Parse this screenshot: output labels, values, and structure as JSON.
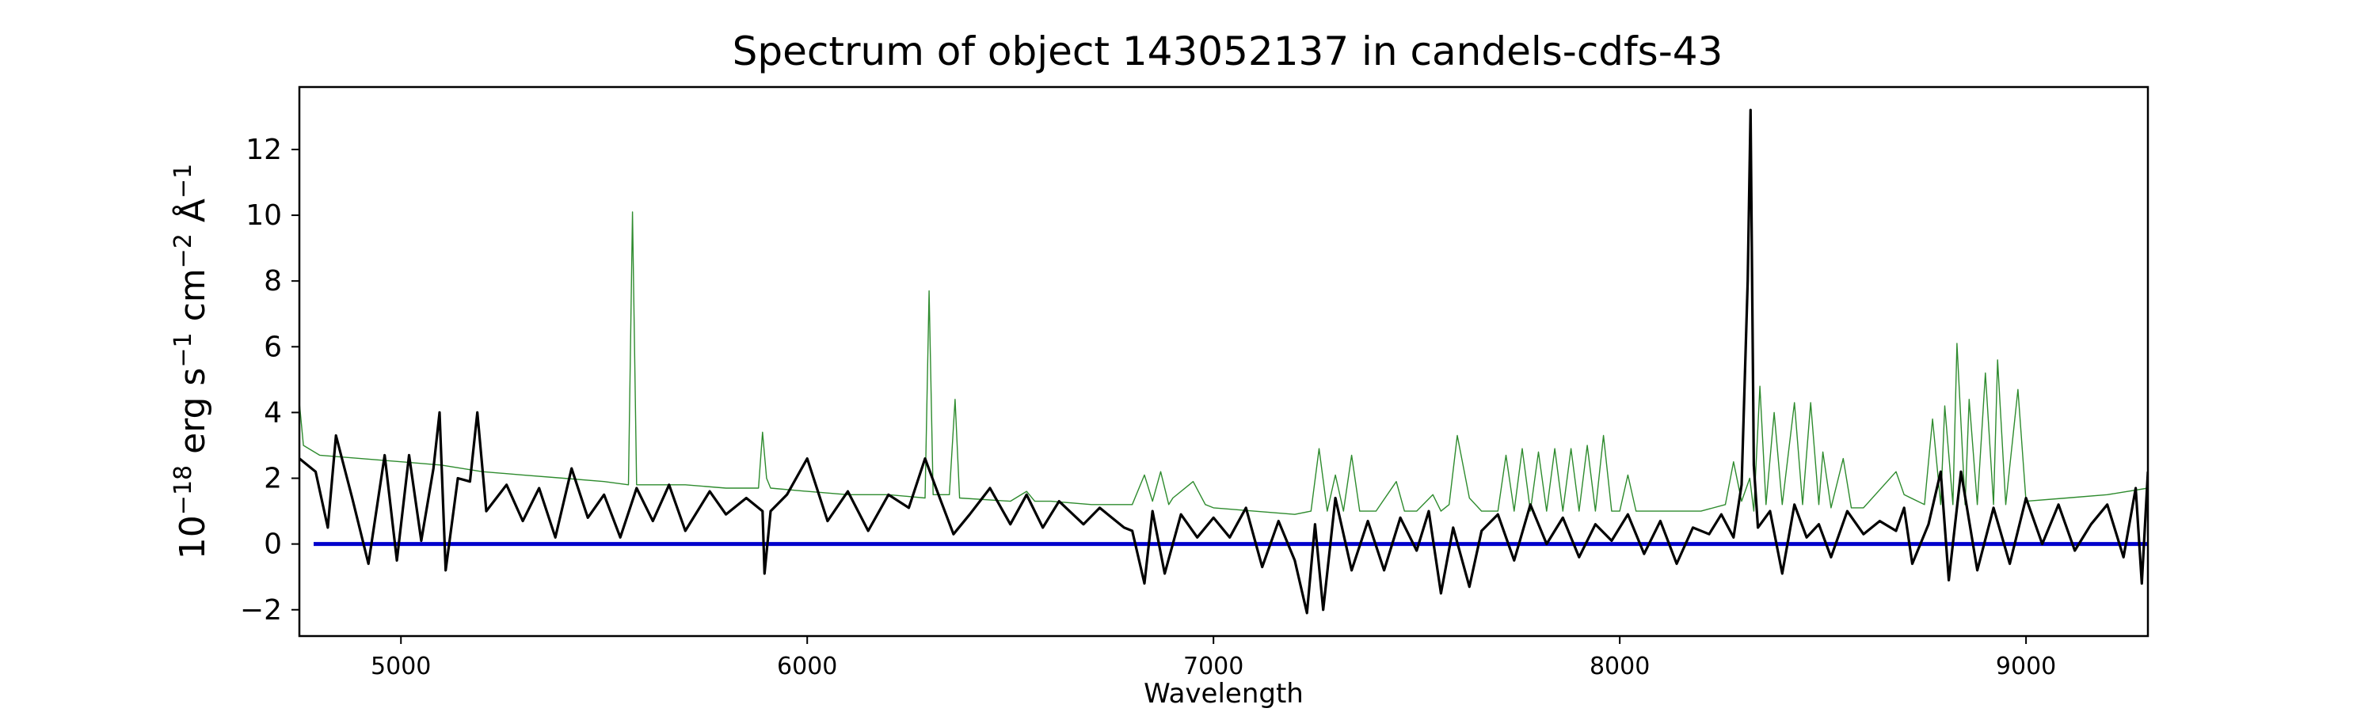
{
  "chart_data": {
    "type": "line",
    "title": "Spectrum of object 143052137 in candels-cdfs-43",
    "xlabel": "Wavelength",
    "ylabel": {
      "base": "10",
      "exp1": "−18",
      "unit1": " erg s",
      "exp2": "−1",
      "unit2": " cm",
      "exp3": "−2",
      "unit3": " Å",
      "exp4": "−1"
    },
    "xlim": [
      4750,
      9300
    ],
    "ylim": [
      -2.8,
      13.9
    ],
    "xticks": [
      5000,
      6000,
      7000,
      8000,
      9000
    ],
    "yticks": [
      -2,
      0,
      2,
      4,
      6,
      8,
      10,
      12
    ],
    "ytick_labels": [
      "−2",
      "0",
      "2",
      "4",
      "6",
      "8",
      "10",
      "12"
    ],
    "grid": false,
    "series": [
      {
        "role": "sky",
        "color": "#2e8b2e",
        "points": [
          [
            4750,
            4.3
          ],
          [
            4760,
            3.0
          ],
          [
            4800,
            2.7
          ],
          [
            4900,
            2.6
          ],
          [
            5000,
            2.5
          ],
          [
            5100,
            2.4
          ],
          [
            5200,
            2.2
          ],
          [
            5300,
            2.1
          ],
          [
            5400,
            2.0
          ],
          [
            5500,
            1.9
          ],
          [
            5560,
            1.8
          ],
          [
            5570,
            10.1
          ],
          [
            5580,
            1.8
          ],
          [
            5700,
            1.8
          ],
          [
            5800,
            1.7
          ],
          [
            5880,
            1.7
          ],
          [
            5890,
            3.4
          ],
          [
            5900,
            2.0
          ],
          [
            5910,
            1.7
          ],
          [
            6000,
            1.6
          ],
          [
            6100,
            1.5
          ],
          [
            6200,
            1.5
          ],
          [
            6290,
            1.4
          ],
          [
            6300,
            7.7
          ],
          [
            6310,
            1.5
          ],
          [
            6350,
            1.5
          ],
          [
            6364,
            4.4
          ],
          [
            6375,
            1.4
          ],
          [
            6500,
            1.3
          ],
          [
            6540,
            1.6
          ],
          [
            6560,
            1.3
          ],
          [
            6600,
            1.3
          ],
          [
            6700,
            1.2
          ],
          [
            6800,
            1.2
          ],
          [
            6830,
            2.1
          ],
          [
            6850,
            1.3
          ],
          [
            6870,
            2.2
          ],
          [
            6890,
            1.2
          ],
          [
            6900,
            1.4
          ],
          [
            6950,
            1.9
          ],
          [
            6980,
            1.2
          ],
          [
            7000,
            1.1
          ],
          [
            7100,
            1.0
          ],
          [
            7200,
            0.9
          ],
          [
            7240,
            1.0
          ],
          [
            7260,
            2.9
          ],
          [
            7280,
            1.0
          ],
          [
            7300,
            2.1
          ],
          [
            7320,
            1.0
          ],
          [
            7340,
            2.7
          ],
          [
            7360,
            1.0
          ],
          [
            7400,
            1.0
          ],
          [
            7450,
            1.9
          ],
          [
            7470,
            1.0
          ],
          [
            7500,
            1.0
          ],
          [
            7540,
            1.5
          ],
          [
            7560,
            1.0
          ],
          [
            7580,
            1.2
          ],
          [
            7600,
            3.3
          ],
          [
            7630,
            1.4
          ],
          [
            7660,
            1.0
          ],
          [
            7700,
            1.0
          ],
          [
            7720,
            2.7
          ],
          [
            7740,
            1.0
          ],
          [
            7760,
            2.9
          ],
          [
            7780,
            1.0
          ],
          [
            7800,
            2.8
          ],
          [
            7820,
            1.0
          ],
          [
            7840,
            2.9
          ],
          [
            7860,
            1.0
          ],
          [
            7880,
            2.9
          ],
          [
            7900,
            1.0
          ],
          [
            7920,
            3.0
          ],
          [
            7940,
            1.0
          ],
          [
            7960,
            3.3
          ],
          [
            7980,
            1.0
          ],
          [
            8000,
            1.0
          ],
          [
            8020,
            2.1
          ],
          [
            8040,
            1.0
          ],
          [
            8100,
            1.0
          ],
          [
            8200,
            1.0
          ],
          [
            8260,
            1.2
          ],
          [
            8280,
            2.5
          ],
          [
            8300,
            1.3
          ],
          [
            8320,
            2.0
          ],
          [
            8330,
            1.0
          ],
          [
            8345,
            4.8
          ],
          [
            8360,
            1.2
          ],
          [
            8380,
            4.0
          ],
          [
            8400,
            1.2
          ],
          [
            8430,
            4.3
          ],
          [
            8450,
            1.2
          ],
          [
            8470,
            4.3
          ],
          [
            8490,
            1.2
          ],
          [
            8500,
            2.8
          ],
          [
            8520,
            1.1
          ],
          [
            8550,
            2.6
          ],
          [
            8570,
            1.1
          ],
          [
            8600,
            1.1
          ],
          [
            8680,
            2.2
          ],
          [
            8700,
            1.5
          ],
          [
            8750,
            1.2
          ],
          [
            8770,
            3.8
          ],
          [
            8790,
            1.2
          ],
          [
            8800,
            4.2
          ],
          [
            8820,
            1.2
          ],
          [
            8830,
            6.1
          ],
          [
            8850,
            1.2
          ],
          [
            8860,
            4.4
          ],
          [
            8880,
            1.2
          ],
          [
            8900,
            5.2
          ],
          [
            8920,
            1.2
          ],
          [
            8930,
            5.6
          ],
          [
            8950,
            1.2
          ],
          [
            8980,
            4.7
          ],
          [
            9000,
            1.3
          ],
          [
            9100,
            1.4
          ],
          [
            9200,
            1.5
          ],
          [
            9300,
            1.7
          ]
        ]
      },
      {
        "role": "continuum",
        "color": "#0000cc",
        "points": [
          [
            4785,
            0.0
          ],
          [
            9300,
            0.0
          ]
        ]
      },
      {
        "role": "flux",
        "color": "#000000",
        "points": [
          [
            4750,
            2.6
          ],
          [
            4790,
            2.2
          ],
          [
            4820,
            0.5
          ],
          [
            4840,
            3.3
          ],
          [
            4880,
            1.4
          ],
          [
            4920,
            -0.6
          ],
          [
            4960,
            2.7
          ],
          [
            4990,
            -0.5
          ],
          [
            5020,
            2.7
          ],
          [
            5050,
            0.1
          ],
          [
            5080,
            2.3
          ],
          [
            5095,
            4.0
          ],
          [
            5110,
            -0.8
          ],
          [
            5140,
            2.0
          ],
          [
            5170,
            1.9
          ],
          [
            5188,
            4.0
          ],
          [
            5210,
            1.0
          ],
          [
            5260,
            1.8
          ],
          [
            5300,
            0.7
          ],
          [
            5340,
            1.7
          ],
          [
            5380,
            0.2
          ],
          [
            5420,
            2.3
          ],
          [
            5460,
            0.8
          ],
          [
            5500,
            1.5
          ],
          [
            5540,
            0.2
          ],
          [
            5580,
            1.7
          ],
          [
            5620,
            0.7
          ],
          [
            5660,
            1.8
          ],
          [
            5700,
            0.4
          ],
          [
            5760,
            1.6
          ],
          [
            5800,
            0.9
          ],
          [
            5850,
            1.4
          ],
          [
            5890,
            1.0
          ],
          [
            5895,
            -0.9
          ],
          [
            5910,
            1.0
          ],
          [
            5950,
            1.5
          ],
          [
            6000,
            2.6
          ],
          [
            6050,
            0.7
          ],
          [
            6100,
            1.6
          ],
          [
            6150,
            0.4
          ],
          [
            6200,
            1.5
          ],
          [
            6250,
            1.1
          ],
          [
            6290,
            2.6
          ],
          [
            6320,
            1.6
          ],
          [
            6360,
            0.3
          ],
          [
            6400,
            0.9
          ],
          [
            6450,
            1.7
          ],
          [
            6500,
            0.6
          ],
          [
            6540,
            1.5
          ],
          [
            6580,
            0.5
          ],
          [
            6620,
            1.3
          ],
          [
            6680,
            0.6
          ],
          [
            6720,
            1.1
          ],
          [
            6780,
            0.5
          ],
          [
            6800,
            0.4
          ],
          [
            6830,
            -1.2
          ],
          [
            6850,
            1.0
          ],
          [
            6880,
            -0.9
          ],
          [
            6920,
            0.9
          ],
          [
            6960,
            0.2
          ],
          [
            7000,
            0.8
          ],
          [
            7040,
            0.2
          ],
          [
            7080,
            1.1
          ],
          [
            7120,
            -0.7
          ],
          [
            7160,
            0.7
          ],
          [
            7200,
            -0.5
          ],
          [
            7230,
            -2.1
          ],
          [
            7250,
            0.6
          ],
          [
            7270,
            -2.0
          ],
          [
            7300,
            1.4
          ],
          [
            7340,
            -0.8
          ],
          [
            7380,
            0.7
          ],
          [
            7420,
            -0.8
          ],
          [
            7460,
            0.8
          ],
          [
            7500,
            -0.2
          ],
          [
            7530,
            1.0
          ],
          [
            7560,
            -1.5
          ],
          [
            7590,
            0.5
          ],
          [
            7630,
            -1.3
          ],
          [
            7660,
            0.4
          ],
          [
            7700,
            0.9
          ],
          [
            7740,
            -0.5
          ],
          [
            7780,
            1.2
          ],
          [
            7820,
            0.0
          ],
          [
            7860,
            0.8
          ],
          [
            7900,
            -0.4
          ],
          [
            7940,
            0.6
          ],
          [
            7980,
            0.1
          ],
          [
            8020,
            0.9
          ],
          [
            8060,
            -0.3
          ],
          [
            8100,
            0.7
          ],
          [
            8140,
            -0.6
          ],
          [
            8180,
            0.5
          ],
          [
            8220,
            0.3
          ],
          [
            8250,
            0.9
          ],
          [
            8280,
            0.2
          ],
          [
            8300,
            1.8
          ],
          [
            8315,
            8.0
          ],
          [
            8322,
            13.2
          ],
          [
            8330,
            2.4
          ],
          [
            8340,
            0.5
          ],
          [
            8370,
            1.0
          ],
          [
            8400,
            -0.9
          ],
          [
            8430,
            1.2
          ],
          [
            8460,
            0.2
          ],
          [
            8490,
            0.6
          ],
          [
            8520,
            -0.4
          ],
          [
            8560,
            1.0
          ],
          [
            8600,
            0.3
          ],
          [
            8640,
            0.7
          ],
          [
            8680,
            0.4
          ],
          [
            8700,
            1.1
          ],
          [
            8720,
            -0.6
          ],
          [
            8760,
            0.6
          ],
          [
            8790,
            2.2
          ],
          [
            8810,
            -1.1
          ],
          [
            8840,
            2.2
          ],
          [
            8880,
            -0.8
          ],
          [
            8920,
            1.1
          ],
          [
            8960,
            -0.6
          ],
          [
            9000,
            1.4
          ],
          [
            9040,
            0.0
          ],
          [
            9080,
            1.2
          ],
          [
            9120,
            -0.2
          ],
          [
            9160,
            0.6
          ],
          [
            9200,
            1.2
          ],
          [
            9240,
            -0.4
          ],
          [
            9270,
            1.7
          ],
          [
            9285,
            -1.2
          ],
          [
            9300,
            2.2
          ]
        ]
      }
    ]
  }
}
